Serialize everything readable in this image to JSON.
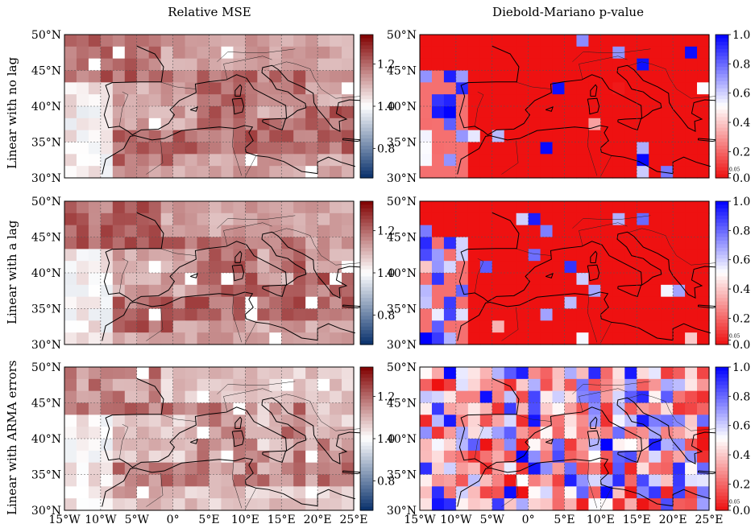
{
  "figure": {
    "col_titles": [
      "Relative MSE",
      "Diebold-Mariano p-value"
    ],
    "row_titles": [
      "Linear with no lag",
      "Linear with a lag",
      "Linear with ARMA errors"
    ]
  },
  "chart_data": [
    {
      "type": "heatmap",
      "panel": "Relative MSE - Linear with no lag",
      "x_ticks": [
        "15°W",
        "10°W",
        "5°W",
        "0°",
        "5°E",
        "10°E",
        "15°E",
        "20°E",
        "25°E"
      ],
      "y_ticks": [
        "30°N",
        "35°N",
        "40°N",
        "45°N",
        "50°N"
      ],
      "colorbar": {
        "ticks": [
          "0.8",
          "1.0",
          "1.2"
        ],
        "range": [
          0.66,
          1.34
        ],
        "colormap": [
          "#08306b",
          "#ffffff",
          "#800000"
        ]
      },
      "grid": true
    },
    {
      "type": "heatmap",
      "panel": "Diebold-Mariano p-value - Linear with no lag",
      "x_ticks": [
        "15°W",
        "10°W",
        "5°W",
        "0°",
        "5°E",
        "10°E",
        "15°E",
        "20°E",
        "25°E"
      ],
      "y_ticks": [
        "30°N",
        "35°N",
        "40°N",
        "45°N",
        "50°N"
      ],
      "colorbar": {
        "ticks": [
          "0.0",
          "0.05",
          "0.2",
          "0.4",
          "0.6",
          "0.8",
          "1.0"
        ],
        "range": [
          0,
          1
        ],
        "colormap": [
          "#ee1111",
          "#ffffff",
          "#0000ff"
        ]
      },
      "grid": true
    },
    {
      "type": "heatmap",
      "panel": "Relative MSE - Linear with a lag",
      "x_ticks": [
        "15°W",
        "10°W",
        "5°W",
        "0°",
        "5°E",
        "10°E",
        "15°E",
        "20°E",
        "25°E"
      ],
      "y_ticks": [
        "30°N",
        "35°N",
        "40°N",
        "45°N",
        "50°N"
      ],
      "colorbar": {
        "ticks": [
          "0.8",
          "1.0",
          "1.2"
        ],
        "range": [
          0.66,
          1.34
        ],
        "colormap": [
          "#08306b",
          "#ffffff",
          "#800000"
        ]
      },
      "grid": true
    },
    {
      "type": "heatmap",
      "panel": "Diebold-Mariano p-value - Linear with a lag",
      "x_ticks": [
        "15°W",
        "10°W",
        "5°W",
        "0°",
        "5°E",
        "10°E",
        "15°E",
        "20°E",
        "25°E"
      ],
      "y_ticks": [
        "30°N",
        "35°N",
        "40°N",
        "45°N",
        "50°N"
      ],
      "colorbar": {
        "ticks": [
          "0.0",
          "0.05",
          "0.2",
          "0.4",
          "0.6",
          "0.8",
          "1.0"
        ],
        "range": [
          0,
          1
        ],
        "colormap": [
          "#ee1111",
          "#ffffff",
          "#0000ff"
        ]
      },
      "grid": true
    },
    {
      "type": "heatmap",
      "panel": "Relative MSE - Linear with ARMA errors",
      "x_ticks": [
        "15°W",
        "10°W",
        "5°W",
        "0°",
        "5°E",
        "10°E",
        "15°E",
        "20°E",
        "25°E"
      ],
      "y_ticks": [
        "30°N",
        "35°N",
        "40°N",
        "45°N",
        "50°N"
      ],
      "colorbar": {
        "ticks": [
          "0.8",
          "1.0",
          "1.2"
        ],
        "range": [
          0.66,
          1.34
        ],
        "colormap": [
          "#08306b",
          "#ffffff",
          "#800000"
        ]
      },
      "grid": true
    },
    {
      "type": "heatmap",
      "panel": "Diebold-Mariano p-value - Linear with ARMA errors",
      "x_ticks": [
        "15°W",
        "10°W",
        "5°W",
        "0°",
        "5°E",
        "10°E",
        "15°E",
        "20°E",
        "25°E"
      ],
      "y_ticks": [
        "30°N",
        "35°N",
        "40°N",
        "45°N",
        "50°N"
      ],
      "colorbar": {
        "ticks": [
          "0.0",
          "0.05",
          "0.2",
          "0.4",
          "0.6",
          "0.8",
          "1.0"
        ],
        "range": [
          0,
          1
        ],
        "colormap": [
          "#ee1111",
          "#ffffff",
          "#0000ff"
        ]
      },
      "grid": true
    }
  ]
}
